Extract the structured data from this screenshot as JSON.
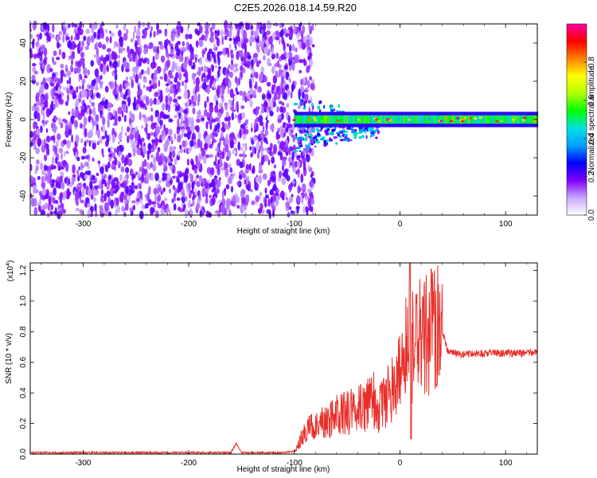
{
  "title": "C2E5.2026.018.14.59.R20",
  "chart_data": [
    {
      "type": "heatmap",
      "xlabel": "Height of straight line (km)",
      "ylabel": "Frequency (Hz)",
      "xlim": [
        -350,
        130
      ],
      "ylim": [
        -50,
        50
      ],
      "x_ticks": [
        -300,
        -200,
        -100,
        0,
        100
      ],
      "y_ticks": [
        -40,
        -20,
        0,
        20,
        40
      ],
      "colorbar": {
        "label": "Normalized spectral amplitude",
        "range": [
          0.0,
          1.0
        ],
        "ticks": [
          "0.0",
          "0.2",
          "0.4",
          "0.6",
          "0.8"
        ],
        "colors": [
          "#ffffff",
          "#c9a6ff",
          "#8000ff",
          "#0000ff",
          "#00a0ff",
          "#00e0e0",
          "#00ff00",
          "#b0ff00",
          "#ffff00",
          "#ff8000",
          "#ff0000",
          "#ff00a0"
        ]
      },
      "regions": [
        {
          "x_range": [
            -350,
            -100
          ],
          "f_range": [
            -50,
            50
          ],
          "description": "noise, amplitude about 0.1-0.2"
        },
        {
          "x_range": [
            -100,
            130
          ],
          "f_center": 0,
          "f_width": 4,
          "amplitude_range": [
            0.4,
            1.0
          ]
        }
      ],
      "grid": false
    },
    {
      "type": "line",
      "xlabel": "Height of straight line (km)",
      "ylabel": "SNR (10 * v/v)",
      "yscale_label": "(x10",
      "yscale_exp": "4",
      "xlim": [
        -350,
        130
      ],
      "ylim": [
        0,
        1.25
      ],
      "x_ticks": [
        -300,
        -200,
        -100,
        0,
        100
      ],
      "y_ticks": [
        0.0,
        0.2,
        0.4,
        0.6,
        0.8,
        1.0,
        1.2
      ],
      "series": [
        {
          "color": "#e8302a",
          "x": [
            -350,
            -300,
            -200,
            -160,
            -155,
            -150,
            -110,
            -100,
            -95,
            -90,
            -80,
            -70,
            -60,
            -50,
            -40,
            -30,
            -25,
            -20,
            -10,
            0,
            5,
            10,
            15,
            20,
            30,
            40,
            45,
            50,
            60,
            80,
            100,
            120,
            130
          ],
          "y": [
            0.01,
            0.01,
            0.01,
            0.01,
            0.07,
            0.01,
            0.01,
            0.02,
            0.08,
            0.15,
            0.18,
            0.22,
            0.25,
            0.27,
            0.3,
            0.32,
            0.35,
            0.3,
            0.4,
            0.55,
            0.65,
            0.75,
            0.7,
            0.78,
            0.8,
            0.8,
            0.68,
            0.66,
            0.65,
            0.66,
            0.66,
            0.66,
            0.67
          ]
        }
      ]
    }
  ]
}
